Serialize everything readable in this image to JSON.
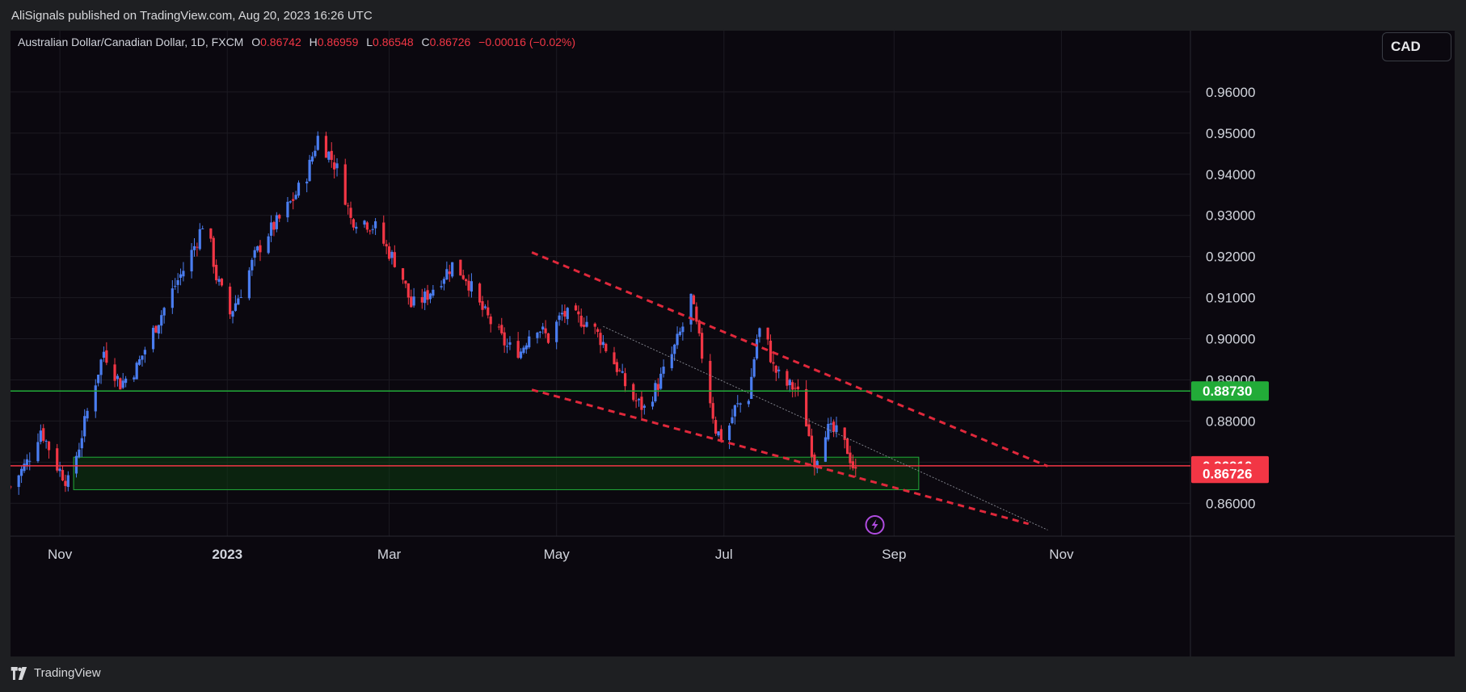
{
  "header": {
    "publisher_line": "AliSignals published on TradingView.com, Aug 20, 2023 16:26 UTC"
  },
  "legend": {
    "symbol": "Australian Dollar/Canadian Dollar, 1D, FXCM",
    "o_label": "O",
    "o_value": "0.86742",
    "h_label": "H",
    "h_value": "0.86959",
    "l_label": "L",
    "l_value": "0.86548",
    "c_label": "C",
    "c_value": "0.86726",
    "change": "−0.00016 (−0.02%)"
  },
  "currency_button": "CAD",
  "footer": {
    "brand": "TradingView"
  },
  "colors": {
    "up": "#4a7df0",
    "down": "#f23645",
    "support": "#22ab38",
    "resistance": "#f23645",
    "channel": "#e0283b",
    "zone_fill": "#0d3a10",
    "zone_border": "#22ab38"
  },
  "chart_data": {
    "type": "candlestick",
    "symbol": "AUDCAD",
    "timeframe": "1D",
    "ylim": [
      0.852,
      0.97
    ],
    "y_ticks": [
      "0.86000",
      "0.87000",
      "0.88000",
      "0.89000",
      "0.90000",
      "0.91000",
      "0.92000",
      "0.93000",
      "0.94000",
      "0.95000",
      "0.96000"
    ],
    "x_ticks": [
      {
        "label": "Nov",
        "date": "2022-11-01"
      },
      {
        "label": "2023",
        "date": "2023-01-01"
      },
      {
        "label": "Mar",
        "date": "2023-03-01"
      },
      {
        "label": "May",
        "date": "2023-05-01"
      },
      {
        "label": "Jul",
        "date": "2023-07-01"
      },
      {
        "label": "Sep",
        "date": "2023-09-01"
      },
      {
        "label": "Nov",
        "date": "2023-11-01"
      }
    ],
    "xlim": [
      "2022-10-14",
      "2023-12-18"
    ],
    "close_path": [
      [
        "2022-10-14",
        0.864
      ],
      [
        "2022-10-20",
        0.87
      ],
      [
        "2022-10-25",
        0.878
      ],
      [
        "2022-10-31",
        0.869
      ],
      [
        "2022-11-04",
        0.865
      ],
      [
        "2022-11-08",
        0.874
      ],
      [
        "2022-11-12",
        0.885
      ],
      [
        "2022-11-17",
        0.897
      ],
      [
        "2022-11-23",
        0.889
      ],
      [
        "2022-11-29",
        0.893
      ],
      [
        "2022-12-03",
        0.899
      ],
      [
        "2022-12-08",
        0.906
      ],
      [
        "2022-12-13",
        0.913
      ],
      [
        "2022-12-17",
        0.918
      ],
      [
        "2022-12-21",
        0.924
      ],
      [
        "2022-12-24",
        0.93
      ],
      [
        "2022-12-28",
        0.915
      ],
      [
        "2023-01-02",
        0.906
      ],
      [
        "2023-01-07",
        0.913
      ],
      [
        "2023-01-11",
        0.92
      ],
      [
        "2023-01-15",
        0.925
      ],
      [
        "2023-01-20",
        0.929
      ],
      [
        "2023-01-25",
        0.934
      ],
      [
        "2023-01-30",
        0.94
      ],
      [
        "2023-02-03",
        0.949
      ],
      [
        "2023-02-07",
        0.945
      ],
      [
        "2023-02-11",
        0.94
      ],
      [
        "2023-02-15",
        0.929
      ],
      [
        "2023-02-19",
        0.929
      ],
      [
        "2023-02-24",
        0.927
      ],
      [
        "2023-02-28",
        0.922
      ],
      [
        "2023-03-05",
        0.917
      ],
      [
        "2023-03-09",
        0.908
      ],
      [
        "2023-03-14",
        0.91
      ],
      [
        "2023-03-19",
        0.914
      ],
      [
        "2023-03-24",
        0.918
      ],
      [
        "2023-03-29",
        0.915
      ],
      [
        "2023-04-03",
        0.908
      ],
      [
        "2023-04-08",
        0.903
      ],
      [
        "2023-04-13",
        0.898
      ],
      [
        "2023-04-18",
        0.897
      ],
      [
        "2023-04-23",
        0.904
      ],
      [
        "2023-04-28",
        0.9
      ],
      [
        "2023-05-03",
        0.906
      ],
      [
        "2023-05-08",
        0.905
      ],
      [
        "2023-05-13",
        0.904
      ],
      [
        "2023-05-18",
        0.899
      ],
      [
        "2023-05-23",
        0.893
      ],
      [
        "2023-05-28",
        0.886
      ],
      [
        "2023-06-02",
        0.883
      ],
      [
        "2023-06-07",
        0.889
      ],
      [
        "2023-06-12",
        0.896
      ],
      [
        "2023-06-16",
        0.903
      ],
      [
        "2023-06-19",
        0.91
      ],
      [
        "2023-06-23",
        0.896
      ],
      [
        "2023-06-28",
        0.878
      ],
      [
        "2023-07-01",
        0.875
      ],
      [
        "2023-07-05",
        0.883
      ],
      [
        "2023-07-10",
        0.886
      ],
      [
        "2023-07-13",
        0.9
      ],
      [
        "2023-07-15",
        0.904
      ],
      [
        "2023-07-19",
        0.893
      ],
      [
        "2023-07-23",
        0.889
      ],
      [
        "2023-07-27",
        0.888
      ],
      [
        "2023-07-30",
        0.883
      ],
      [
        "2023-08-03",
        0.87
      ],
      [
        "2023-08-07",
        0.878
      ],
      [
        "2023-08-11",
        0.877
      ],
      [
        "2023-08-15",
        0.873
      ],
      [
        "2023-08-18",
        0.8672
      ]
    ],
    "horizontal_lines": [
      {
        "price": 0.8873,
        "label": "0.88730",
        "color": "#22ab38"
      },
      {
        "price": 0.8691,
        "label": "0.86910",
        "color": "#f23645"
      }
    ],
    "last_price": {
      "price": 0.86726,
      "label": "0.86726"
    },
    "zone": {
      "from": "2022-11-06",
      "to": "2023-09-10",
      "low": 0.8633,
      "high": 0.8712
    },
    "channel_upper": {
      "from": [
        "2023-04-22",
        0.921
      ],
      "to": [
        "2023-10-27",
        0.869
      ]
    },
    "channel_lower": {
      "from": [
        "2023-04-22",
        0.8876
      ],
      "to": [
        "2023-10-20",
        0.855
      ]
    },
    "trend_line": {
      "from": [
        "2023-05-18",
        0.903
      ],
      "to": [
        "2023-10-27",
        0.8535
      ]
    }
  }
}
